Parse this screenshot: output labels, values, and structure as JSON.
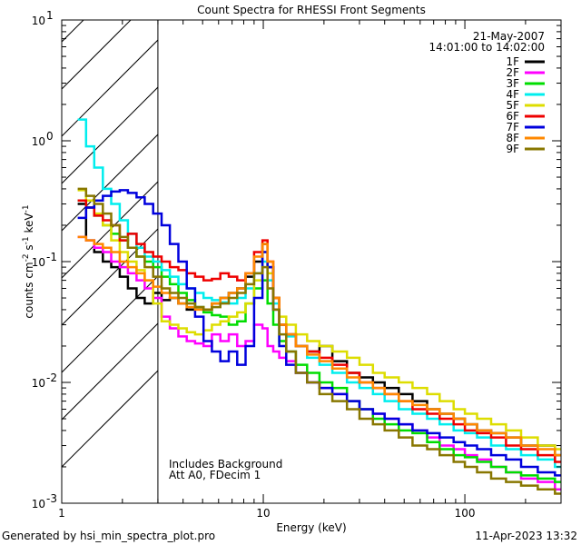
{
  "chart_data": {
    "type": "line",
    "title": "Count Spectra for RHESSI Front Segments",
    "xlabel": "Energy (keV)",
    "ylabel_parts": [
      "counts cm",
      "-2",
      " s",
      "-1",
      " keV",
      "-1"
    ],
    "xscale": "log",
    "yscale": "log",
    "xlim": [
      1,
      300
    ],
    "ylim": [
      0.001,
      10
    ],
    "x_ticks": [
      {
        "value": 1,
        "label": "1"
      },
      {
        "value": 10,
        "label": "10"
      },
      {
        "value": 100,
        "label": "100"
      }
    ],
    "y_ticks": [
      {
        "value": 0.001,
        "base": "10",
        "exp": "-3"
      },
      {
        "value": 0.01,
        "base": "10",
        "exp": "-2"
      },
      {
        "value": 0.1,
        "base": "10",
        "exp": "-1"
      },
      {
        "value": 1,
        "base": "10",
        "exp": "0"
      },
      {
        "value": 10,
        "base": "10",
        "exp": "1"
      }
    ],
    "hatched_region_upper_keV": 3,
    "legend": {
      "date": "21-May-2007",
      "time_range": "14:01:00 to 14:02:00",
      "placement": "top-right"
    },
    "annotation_lines": [
      "Includes Background",
      "Att A0, FDecim 1"
    ],
    "series": [
      {
        "name": "1F",
        "color": "#000000",
        "x": [
          1.2,
          1.32,
          1.45,
          1.6,
          1.76,
          1.94,
          2.13,
          2.35,
          2.58,
          2.84,
          3.13,
          3.44,
          3.79,
          4.17,
          4.59,
          5.05,
          5.56,
          6.12,
          6.74,
          7.42,
          8.17,
          9.0,
          9.9,
          10.5,
          11.2,
          12.0,
          13.0,
          14.5,
          16.5,
          19.0,
          22.0,
          26.0,
          30.0,
          35.0,
          40.0,
          47.0,
          55.0,
          65.0,
          75.0,
          88.0,
          100.0,
          115.0,
          135.0,
          160.0,
          190.0,
          230.0,
          280.0
        ],
        "y": [
          0.3,
          0.15,
          0.12,
          0.1,
          0.09,
          0.075,
          0.06,
          0.05,
          0.045,
          0.055,
          0.048,
          0.05,
          0.045,
          0.04,
          0.042,
          0.04,
          0.045,
          0.05,
          0.055,
          0.06,
          0.075,
          0.1,
          0.14,
          0.09,
          0.05,
          0.03,
          0.025,
          0.02,
          0.018,
          0.02,
          0.015,
          0.012,
          0.011,
          0.01,
          0.009,
          0.008,
          0.007,
          0.006,
          0.0055,
          0.005,
          0.0045,
          0.004,
          0.0038,
          0.0035,
          0.003,
          0.003,
          0.0025
        ]
      },
      {
        "name": "2F",
        "color": "#ff00ff",
        "x": [
          1.2,
          1.32,
          1.45,
          1.6,
          1.76,
          1.94,
          2.13,
          2.35,
          2.58,
          2.84,
          3.13,
          3.44,
          3.79,
          4.17,
          4.59,
          5.05,
          5.56,
          6.12,
          6.74,
          7.42,
          8.17,
          9.0,
          9.9,
          10.5,
          11.2,
          12.0,
          13.0,
          14.5,
          16.5,
          19.0,
          22.0,
          26.0,
          30.0,
          35.0,
          40.0,
          47.0,
          55.0,
          65.0,
          75.0,
          88.0,
          100.0,
          115.0,
          135.0,
          160.0,
          190.0,
          230.0,
          280.0
        ],
        "y": [
          0.16,
          0.15,
          0.13,
          0.12,
          0.1,
          0.09,
          0.08,
          0.07,
          0.06,
          0.05,
          0.035,
          0.028,
          0.024,
          0.022,
          0.021,
          0.02,
          0.025,
          0.022,
          0.025,
          0.02,
          0.022,
          0.03,
          0.028,
          0.02,
          0.018,
          0.016,
          0.015,
          0.012,
          0.01,
          0.009,
          0.008,
          0.007,
          0.006,
          0.0055,
          0.005,
          0.0045,
          0.004,
          0.0035,
          0.003,
          0.0028,
          0.0025,
          0.0023,
          0.002,
          0.0018,
          0.0016,
          0.0015,
          0.0013
        ]
      },
      {
        "name": "3F",
        "color": "#00dd00",
        "x": [
          1.2,
          1.32,
          1.45,
          1.6,
          1.76,
          1.94,
          2.13,
          2.35,
          2.58,
          2.84,
          3.13,
          3.44,
          3.79,
          4.17,
          4.59,
          5.05,
          5.56,
          6.12,
          6.74,
          7.42,
          8.17,
          9.0,
          9.9,
          10.5,
          11.2,
          12.0,
          13.0,
          14.5,
          16.5,
          19.0,
          22.0,
          26.0,
          30.0,
          35.0,
          40.0,
          47.0,
          55.0,
          65.0,
          75.0,
          88.0,
          100.0,
          115.0,
          135.0,
          160.0,
          190.0,
          230.0,
          280.0
        ],
        "y": [
          0.32,
          0.28,
          0.24,
          0.2,
          0.17,
          0.15,
          0.13,
          0.11,
          0.1,
          0.09,
          0.075,
          0.065,
          0.055,
          0.048,
          0.042,
          0.038,
          0.036,
          0.035,
          0.03,
          0.032,
          0.045,
          0.06,
          0.07,
          0.045,
          0.03,
          0.022,
          0.018,
          0.014,
          0.012,
          0.01,
          0.009,
          0.007,
          0.006,
          0.005,
          0.0045,
          0.004,
          0.0038,
          0.0032,
          0.0028,
          0.0025,
          0.0024,
          0.0022,
          0.002,
          0.0018,
          0.0017,
          0.0016,
          0.0015
        ]
      },
      {
        "name": "4F",
        "color": "#00eeee",
        "x": [
          1.2,
          1.32,
          1.45,
          1.6,
          1.76,
          1.94,
          2.13,
          2.35,
          2.58,
          2.84,
          3.13,
          3.44,
          3.79,
          4.17,
          4.59,
          5.05,
          5.56,
          6.12,
          6.74,
          7.42,
          8.17,
          9.0,
          9.9,
          10.5,
          11.2,
          12.0,
          13.0,
          14.5,
          16.5,
          19.0,
          22.0,
          26.0,
          30.0,
          35.0,
          40.0,
          47.0,
          55.0,
          65.0,
          75.0,
          88.0,
          100.0,
          115.0,
          135.0,
          160.0,
          190.0,
          230.0,
          280.0
        ],
        "y": [
          1.5,
          0.9,
          0.6,
          0.4,
          0.3,
          0.22,
          0.17,
          0.13,
          0.11,
          0.1,
          0.085,
          0.075,
          0.065,
          0.06,
          0.055,
          0.05,
          0.048,
          0.046,
          0.045,
          0.05,
          0.06,
          0.08,
          0.1,
          0.07,
          0.045,
          0.03,
          0.024,
          0.02,
          0.016,
          0.014,
          0.012,
          0.01,
          0.009,
          0.008,
          0.007,
          0.006,
          0.0055,
          0.005,
          0.0045,
          0.004,
          0.0038,
          0.0035,
          0.003,
          0.0028,
          0.0025,
          0.0023,
          0.002
        ]
      },
      {
        "name": "5F",
        "color": "#dddd00",
        "x": [
          1.2,
          1.32,
          1.45,
          1.6,
          1.76,
          1.94,
          2.13,
          2.35,
          2.58,
          2.84,
          3.13,
          3.44,
          3.79,
          4.17,
          4.59,
          5.05,
          5.56,
          6.12,
          6.74,
          7.42,
          8.17,
          9.0,
          9.9,
          10.5,
          11.2,
          12.0,
          13.0,
          14.5,
          16.5,
          19.0,
          22.0,
          26.0,
          30.0,
          35.0,
          40.0,
          47.0,
          55.0,
          65.0,
          75.0,
          88.0,
          100.0,
          115.0,
          135.0,
          160.0,
          190.0,
          230.0,
          280.0
        ],
        "y": [
          0.39,
          0.32,
          0.25,
          0.2,
          0.15,
          0.12,
          0.1,
          0.085,
          0.07,
          0.045,
          0.032,
          0.03,
          0.028,
          0.026,
          0.025,
          0.027,
          0.03,
          0.032,
          0.035,
          0.038,
          0.045,
          0.07,
          0.12,
          0.08,
          0.05,
          0.035,
          0.03,
          0.025,
          0.022,
          0.02,
          0.018,
          0.016,
          0.014,
          0.012,
          0.011,
          0.01,
          0.009,
          0.008,
          0.007,
          0.006,
          0.0055,
          0.005,
          0.0045,
          0.004,
          0.0035,
          0.003,
          0.0028
        ]
      },
      {
        "name": "6F",
        "color": "#ee0000",
        "x": [
          1.2,
          1.32,
          1.45,
          1.6,
          1.76,
          1.94,
          2.13,
          2.35,
          2.58,
          2.84,
          3.13,
          3.44,
          3.79,
          4.17,
          4.59,
          5.05,
          5.56,
          6.12,
          6.74,
          7.42,
          8.17,
          9.0,
          9.9,
          10.5,
          11.2,
          12.0,
          13.0,
          14.5,
          16.5,
          19.0,
          22.0,
          26.0,
          30.0,
          35.0,
          40.0,
          47.0,
          55.0,
          65.0,
          75.0,
          88.0,
          100.0,
          115.0,
          135.0,
          160.0,
          190.0,
          230.0,
          280.0
        ],
        "y": [
          0.32,
          0.28,
          0.24,
          0.22,
          0.2,
          0.15,
          0.17,
          0.14,
          0.12,
          0.11,
          0.1,
          0.09,
          0.085,
          0.08,
          0.075,
          0.07,
          0.072,
          0.08,
          0.075,
          0.07,
          0.08,
          0.12,
          0.15,
          0.1,
          0.05,
          0.03,
          0.025,
          0.02,
          0.018,
          0.016,
          0.014,
          0.012,
          0.01,
          0.009,
          0.008,
          0.007,
          0.006,
          0.0055,
          0.005,
          0.0045,
          0.004,
          0.0038,
          0.0035,
          0.003,
          0.0028,
          0.0025,
          0.0022
        ]
      },
      {
        "name": "7F",
        "color": "#0000dd",
        "x": [
          1.2,
          1.32,
          1.45,
          1.6,
          1.76,
          1.94,
          2.13,
          2.35,
          2.58,
          2.84,
          3.13,
          3.44,
          3.79,
          4.17,
          4.59,
          5.05,
          5.56,
          6.12,
          6.74,
          7.42,
          8.17,
          9.0,
          9.9,
          10.5,
          11.2,
          12.0,
          13.0,
          14.5,
          16.5,
          19.0,
          22.0,
          26.0,
          30.0,
          35.0,
          40.0,
          47.0,
          55.0,
          65.0,
          75.0,
          88.0,
          100.0,
          115.0,
          135.0,
          160.0,
          190.0,
          230.0,
          280.0
        ],
        "y": [
          0.23,
          0.28,
          0.32,
          0.35,
          0.38,
          0.39,
          0.37,
          0.34,
          0.3,
          0.25,
          0.2,
          0.14,
          0.1,
          0.06,
          0.035,
          0.022,
          0.018,
          0.015,
          0.018,
          0.014,
          0.02,
          0.05,
          0.12,
          0.09,
          0.04,
          0.02,
          0.014,
          0.012,
          0.01,
          0.009,
          0.008,
          0.007,
          0.006,
          0.0055,
          0.005,
          0.0045,
          0.004,
          0.0038,
          0.0035,
          0.0032,
          0.003,
          0.0028,
          0.0025,
          0.0023,
          0.002,
          0.0018,
          0.0017
        ]
      },
      {
        "name": "8F",
        "color": "#ff8800",
        "x": [
          1.2,
          1.32,
          1.45,
          1.6,
          1.76,
          1.94,
          2.13,
          2.35,
          2.58,
          2.84,
          3.13,
          3.44,
          3.79,
          4.17,
          4.59,
          5.05,
          5.56,
          6.12,
          6.74,
          7.42,
          8.17,
          9.0,
          9.9,
          10.5,
          11.2,
          12.0,
          13.0,
          14.5,
          16.5,
          19.0,
          22.0,
          26.0,
          30.0,
          35.0,
          40.0,
          47.0,
          55.0,
          65.0,
          75.0,
          88.0,
          100.0,
          115.0,
          135.0,
          160.0,
          190.0,
          230.0,
          280.0
        ],
        "y": [
          0.16,
          0.15,
          0.14,
          0.13,
          0.12,
          0.1,
          0.09,
          0.08,
          0.07,
          0.062,
          0.055,
          0.05,
          0.045,
          0.042,
          0.04,
          0.04,
          0.045,
          0.05,
          0.055,
          0.06,
          0.08,
          0.11,
          0.14,
          0.1,
          0.05,
          0.03,
          0.025,
          0.02,
          0.017,
          0.015,
          0.013,
          0.011,
          0.01,
          0.009,
          0.008,
          0.007,
          0.0065,
          0.006,
          0.0055,
          0.005,
          0.0045,
          0.004,
          0.0038,
          0.0035,
          0.003,
          0.0028,
          0.0025
        ]
      },
      {
        "name": "9F",
        "color": "#887700",
        "x": [
          1.2,
          1.32,
          1.45,
          1.6,
          1.76,
          1.94,
          2.13,
          2.35,
          2.58,
          2.84,
          3.13,
          3.44,
          3.79,
          4.17,
          4.59,
          5.05,
          5.56,
          6.12,
          6.74,
          7.42,
          8.17,
          9.0,
          9.9,
          10.5,
          11.2,
          12.0,
          13.0,
          14.5,
          16.5,
          19.0,
          22.0,
          26.0,
          30.0,
          35.0,
          40.0,
          47.0,
          55.0,
          65.0,
          75.0,
          88.0,
          100.0,
          115.0,
          135.0,
          160.0,
          190.0,
          230.0,
          280.0
        ],
        "y": [
          0.4,
          0.35,
          0.3,
          0.25,
          0.2,
          0.16,
          0.13,
          0.11,
          0.09,
          0.075,
          0.06,
          0.055,
          0.05,
          0.045,
          0.042,
          0.04,
          0.042,
          0.045,
          0.05,
          0.055,
          0.065,
          0.08,
          0.09,
          0.06,
          0.04,
          0.025,
          0.018,
          0.012,
          0.01,
          0.008,
          0.007,
          0.006,
          0.005,
          0.0045,
          0.004,
          0.0035,
          0.003,
          0.0028,
          0.0025,
          0.0022,
          0.002,
          0.0018,
          0.0016,
          0.0015,
          0.0014,
          0.0013,
          0.0012
        ]
      }
    ]
  },
  "footer": {
    "generated_by": "Generated by hsi_min_spectra_plot.pro",
    "timestamp": "11-Apr-2023 13:32"
  }
}
